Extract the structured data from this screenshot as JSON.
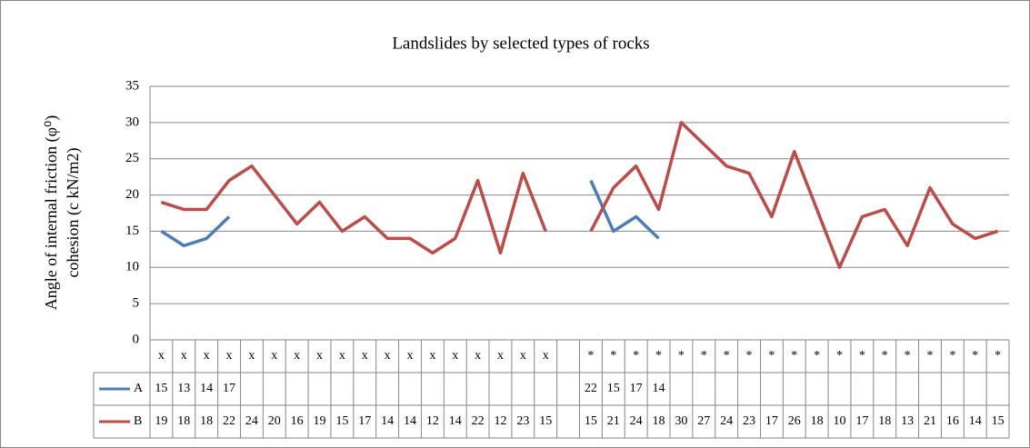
{
  "chart_data": {
    "type": "line",
    "title": "Landslides by selected types of rocks",
    "ylabel": [
      "Angle of internal friction (φ⁰)",
      "cohesion (c kN/m2)"
    ],
    "categories": [
      "x",
      "x",
      "x",
      "x",
      "x",
      "x",
      "x",
      "x",
      "x",
      "x",
      "x",
      "x",
      "x",
      "x",
      "x",
      "x",
      "x",
      "x",
      null,
      "*",
      "*",
      "*",
      "*",
      "*",
      "*",
      "*",
      "*",
      "*",
      "*",
      "*",
      "*",
      "*",
      "*",
      "*",
      "*",
      "*",
      "*",
      "*"
    ],
    "series": [
      {
        "name": "A",
        "color": "#4a7ebb",
        "values": [
          15,
          13,
          14,
          17,
          null,
          null,
          null,
          null,
          null,
          null,
          null,
          null,
          null,
          null,
          null,
          null,
          null,
          null,
          null,
          22,
          15,
          17,
          14,
          null,
          null,
          null,
          null,
          null,
          null,
          null,
          null,
          null,
          null,
          null,
          null,
          null,
          null,
          null
        ]
      },
      {
        "name": "B",
        "color": "#be4b48",
        "values": [
          19,
          18,
          18,
          22,
          24,
          20,
          16,
          19,
          15,
          17,
          14,
          14,
          12,
          14,
          22,
          12,
          23,
          15,
          null,
          15,
          21,
          24,
          18,
          30,
          27,
          24,
          23,
          17,
          26,
          18,
          10,
          17,
          18,
          13,
          21,
          16,
          14,
          15
        ]
      }
    ],
    "ylim": [
      0,
      35
    ],
    "yticks": [
      0,
      5,
      10,
      15,
      20,
      25,
      30,
      35
    ],
    "grid": true,
    "data_table": true
  }
}
